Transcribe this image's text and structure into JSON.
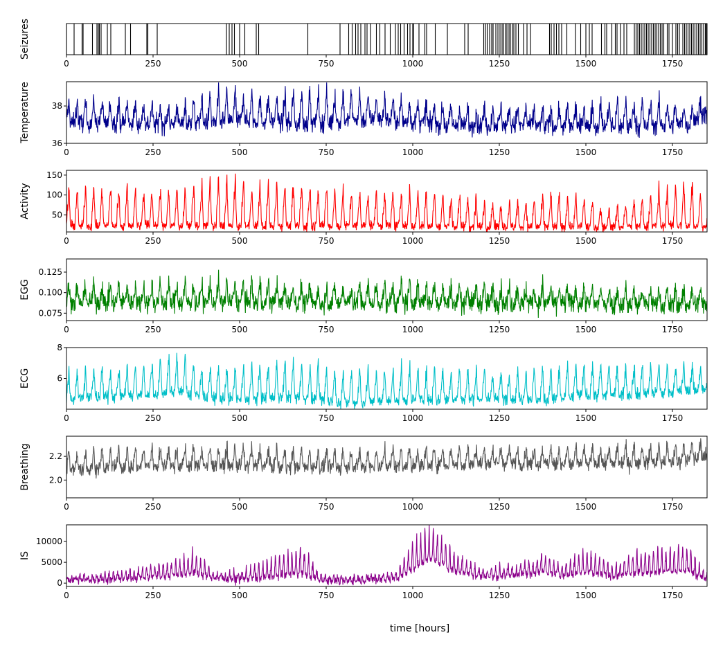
{
  "figure": {
    "xlabel": "time [hours]"
  },
  "chart_data": [
    {
      "type": "event-raster",
      "ylabel": "Seizures",
      "color": "#000000",
      "xlim": [
        0,
        1850
      ],
      "xticks": [
        0,
        250,
        500,
        750,
        1000,
        1250,
        1500,
        1750
      ],
      "events": [
        0,
        22,
        45,
        48,
        75,
        88,
        92,
        95,
        100,
        118,
        128,
        170,
        185,
        232,
        235,
        262,
        462,
        470,
        478,
        485,
        500,
        515,
        548,
        555,
        697,
        790,
        815,
        825,
        835,
        842,
        850,
        862,
        868,
        878,
        895,
        905,
        920,
        935,
        950,
        958,
        965,
        975,
        985,
        992,
        1000,
        1002,
        1018,
        1035,
        1040,
        1065,
        1100,
        1150,
        1160,
        1205,
        1210,
        1215,
        1222,
        1228,
        1232,
        1240,
        1246,
        1252,
        1258,
        1262,
        1268,
        1272,
        1278,
        1282,
        1288,
        1292,
        1298,
        1305,
        1320,
        1330,
        1340,
        1395,
        1400,
        1408,
        1415,
        1422,
        1430,
        1445,
        1470,
        1485,
        1500,
        1510,
        1518,
        1545,
        1555,
        1560,
        1575,
        1585,
        1590,
        1600,
        1610,
        1618,
        1640,
        1645,
        1650,
        1655,
        1660,
        1665,
        1670,
        1675,
        1680,
        1685,
        1690,
        1695,
        1700,
        1705,
        1710,
        1715,
        1720,
        1725,
        1735,
        1740,
        1750,
        1760,
        1765,
        1770,
        1780,
        1785,
        1790,
        1795,
        1800,
        1805,
        1810,
        1815,
        1820,
        1825,
        1830,
        1835,
        1840,
        1845,
        1848
      ]
    },
    {
      "type": "line",
      "ylabel": "Temperature",
      "color": "#00008b",
      "xlim": [
        0,
        1850
      ],
      "ylim": [
        36,
        39.3
      ],
      "yticks": [
        36,
        38
      ],
      "yticklabels": [
        "36",
        "38"
      ],
      "xticks": [
        0,
        250,
        500,
        750,
        1000,
        1250,
        1500,
        1750
      ],
      "period": 24,
      "x": [
        0,
        150,
        300,
        480,
        580,
        680,
        880,
        1000,
        1150,
        1250,
        1400,
        1600,
        1800,
        1850
      ],
      "y_base": [
        37.1,
        37.1,
        37.0,
        37.2,
        37.2,
        37.0,
        37.3,
        37.1,
        36.9,
        37.0,
        36.9,
        36.9,
        37.0,
        37.6
      ],
      "y_amplitude": [
        1.1,
        1.1,
        1.0,
        1.5,
        1.2,
        1.8,
        1.2,
        1.1,
        0.9,
        0.9,
        0.9,
        1.4,
        1.0,
        1.0
      ],
      "noise": 0.25
    },
    {
      "type": "line",
      "ylabel": "Activity",
      "color": "#ff0000",
      "xlim": [
        0,
        1850
      ],
      "ylim": [
        7,
        162
      ],
      "yticks": [
        50,
        100,
        150
      ],
      "yticklabels": [
        "50",
        "100",
        "150"
      ],
      "xticks": [
        0,
        250,
        500,
        750,
        1000,
        1250,
        1500,
        1750
      ],
      "period": 24,
      "x": [
        0,
        100,
        250,
        350,
        450,
        520,
        680,
        800,
        1000,
        1150,
        1250,
        1400,
        1500,
        1550,
        1650,
        1700,
        1800,
        1850
      ],
      "y_base": [
        22,
        22,
        24,
        22,
        22,
        22,
        22,
        22,
        22,
        20,
        20,
        20,
        20,
        18,
        22,
        22,
        22,
        22
      ],
      "y_amplitude": [
        90,
        95,
        85,
        95,
        120,
        100,
        105,
        85,
        90,
        75,
        55,
        75,
        70,
        45,
        60,
        90,
        110,
        70
      ],
      "noise": 6
    },
    {
      "type": "line",
      "ylabel": "EGG",
      "color": "#008000",
      "xlim": [
        0,
        1850
      ],
      "ylim": [
        0.066,
        0.141
      ],
      "yticks": [
        0.075,
        0.1,
        0.125
      ],
      "yticklabels": [
        "0.075",
        "0.100",
        "0.125"
      ],
      "xticks": [
        0,
        250,
        500,
        750,
        1000,
        1250,
        1500,
        1750
      ],
      "period": 24,
      "x": [
        0,
        250,
        500,
        750,
        1000,
        1250,
        1500,
        1750,
        1850
      ],
      "y_base": [
        0.088,
        0.088,
        0.088,
        0.087,
        0.088,
        0.087,
        0.086,
        0.085,
        0.087
      ],
      "y_amplitude": [
        0.02,
        0.022,
        0.025,
        0.02,
        0.022,
        0.02,
        0.02,
        0.018,
        0.015
      ],
      "noise": 0.006
    },
    {
      "type": "line",
      "ylabel": "ECG",
      "color": "#00bfc8",
      "xlim": [
        0,
        1850
      ],
      "ylim": [
        4.0,
        8.0
      ],
      "yticks": [
        6,
        8
      ],
      "yticklabels": [
        "6",
        "8"
      ],
      "xticks": [
        0,
        250,
        500,
        750,
        1000,
        1250,
        1500,
        1750
      ],
      "period": 24,
      "x": [
        0,
        200,
        320,
        400,
        500,
        650,
        800,
        1000,
        1100,
        1250,
        1400,
        1500,
        1700,
        1850
      ],
      "y_base": [
        4.7,
        4.9,
        5.1,
        4.8,
        4.6,
        4.8,
        4.4,
        4.6,
        4.6,
        4.7,
        4.6,
        4.9,
        5.0,
        5.3
      ],
      "y_amplitude": [
        1.7,
        1.8,
        2.5,
        1.8,
        2.1,
        2.2,
        2.0,
        2.1,
        2.0,
        1.6,
        2.0,
        1.9,
        1.8,
        1.4
      ],
      "noise": 0.2
    },
    {
      "type": "line",
      "ylabel": "Breathing",
      "color": "#555555",
      "xlim": [
        0,
        1850
      ],
      "ylim": [
        1.85,
        2.37
      ],
      "yticks": [
        2.0,
        2.2
      ],
      "yticklabels": [
        "2.0",
        "2.2"
      ],
      "xticks": [
        0,
        250,
        500,
        750,
        1000,
        1250,
        1500,
        1750
      ],
      "period": 24,
      "x": [
        0,
        250,
        500,
        750,
        1000,
        1250,
        1500,
        1750,
        1850
      ],
      "y_base": [
        2.08,
        2.12,
        2.12,
        2.1,
        2.12,
        2.14,
        2.13,
        2.15,
        2.2
      ],
      "y_amplitude": [
        0.16,
        0.15,
        0.16,
        0.15,
        0.15,
        0.13,
        0.15,
        0.14,
        0.14
      ],
      "noise": 0.03
    },
    {
      "type": "line",
      "ylabel": "IS",
      "color": "#8b008b",
      "xlim": [
        0,
        1850
      ],
      "ylim": [
        -800,
        14000
      ],
      "yticks": [
        0,
        5000,
        10000
      ],
      "yticklabels": [
        "0",
        "5000",
        "10000"
      ],
      "xticks": [
        0,
        250,
        500,
        750,
        1000,
        1250,
        1500,
        1750
      ],
      "period": 12,
      "x": [
        0,
        150,
        300,
        370,
        430,
        500,
        600,
        680,
        730,
        800,
        950,
        1000,
        1050,
        1120,
        1200,
        1300,
        1380,
        1430,
        1500,
        1580,
        1650,
        1800,
        1840,
        1850
      ],
      "y_base": [
        600,
        900,
        1800,
        2500,
        1000,
        900,
        1500,
        2500,
        700,
        500,
        900,
        3500,
        6000,
        3000,
        1500,
        1800,
        2800,
        1800,
        2500,
        1500,
        2500,
        3000,
        1000,
        1000
      ],
      "y_amplitude": [
        900,
        1800,
        3500,
        5000,
        1800,
        1600,
        5000,
        6500,
        1500,
        900,
        1800,
        6500,
        7500,
        5000,
        2000,
        2500,
        5000,
        2500,
        6000,
        3000,
        5500,
        6000,
        2000,
        1500
      ],
      "noise": 500
    }
  ]
}
